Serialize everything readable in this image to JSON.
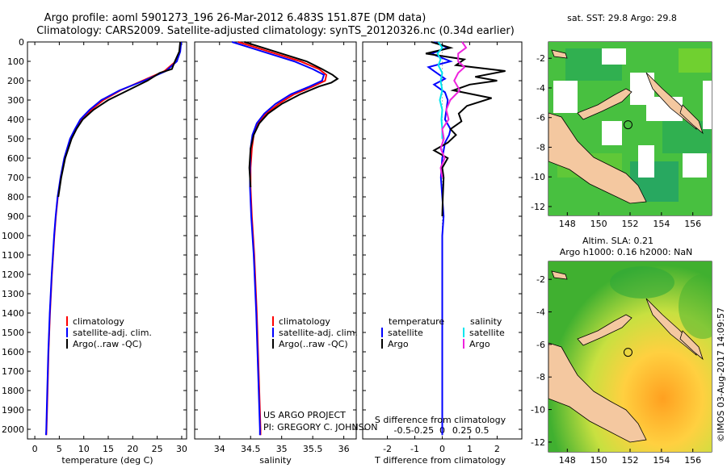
{
  "header": {
    "line1": "Argo profile: aoml 5901273_196 26-Mar-2012 6.483S 151.87E (DM data)",
    "line2": "Climatology: CARS2009. Satellite-adjusted climatology: synTS_20120326.nc (0.34d earlier)"
  },
  "credit": {
    "project": "US ARGO PROJECT",
    "pi": "PI: GREGORY C. JOHNSON"
  },
  "watermark": "©IMOS 03-Aug-2017 14:09:57",
  "colors": {
    "climatology": "#ff0000",
    "satellite": "#0000ff",
    "argo": "#000000",
    "sat_salinity": "#00e5ee",
    "argo_salinity": "#ee22dd",
    "land": "#f4c8a0"
  },
  "chart_data": [
    {
      "type": "line",
      "panel": "temperature",
      "xlabel": "temperature (deg C)",
      "ylabel": "",
      "xlim": [
        -1.5,
        31
      ],
      "ylim": [
        2050,
        0
      ],
      "xticks": [
        0,
        5,
        10,
        15,
        20,
        25,
        30
      ],
      "yticks": [
        0,
        100,
        200,
        300,
        400,
        500,
        600,
        700,
        800,
        900,
        1000,
        1100,
        1200,
        1300,
        1400,
        1500,
        1600,
        1700,
        1800,
        1900,
        2000
      ],
      "legend": [
        "climatology",
        "satellite-adj. clim.",
        "Argo(..raw -QC)"
      ],
      "series": [
        {
          "name": "climatology",
          "color": "#ff0000",
          "depth": [
            0,
            50,
            100,
            150,
            200,
            250,
            300,
            350,
            400,
            450,
            500,
            600,
            700,
            800,
            900,
            1000,
            1200,
            1400,
            1600,
            1800,
            2000,
            2030
          ],
          "values": [
            29.8,
            29.6,
            28.8,
            26.5,
            22.0,
            17.5,
            14.0,
            11.5,
            9.5,
            8.3,
            7.3,
            6.1,
            5.3,
            4.7,
            4.3,
            4.0,
            3.5,
            3.1,
            2.8,
            2.6,
            2.4,
            2.35
          ]
        },
        {
          "name": "satellite-adj. clim.",
          "color": "#0000ff",
          "depth": [
            0,
            50,
            100,
            150,
            200,
            250,
            300,
            350,
            400,
            450,
            500,
            600,
            700,
            800,
            900,
            1000,
            1200,
            1400,
            1600,
            1800,
            2000,
            2030
          ],
          "values": [
            29.9,
            29.7,
            29.0,
            26.8,
            22.3,
            17.3,
            13.6,
            11.2,
            9.3,
            8.2,
            7.2,
            6.0,
            5.25,
            4.65,
            4.25,
            3.95,
            3.45,
            3.05,
            2.75,
            2.55,
            2.35,
            2.3
          ]
        },
        {
          "name": "Argo(..raw -QC)",
          "color": "#000000",
          "depth": [
            0,
            50,
            100,
            140,
            160,
            200,
            250,
            300,
            350,
            400,
            450,
            500,
            600,
            700,
            800
          ],
          "values": [
            29.7,
            29.5,
            28.6,
            28.0,
            25.5,
            23.0,
            19.0,
            15.0,
            12.0,
            9.8,
            8.5,
            7.5,
            6.2,
            5.4,
            4.8
          ]
        }
      ]
    },
    {
      "type": "line",
      "panel": "salinity",
      "xlabel": "salinity",
      "xlim": [
        33.6,
        36.2
      ],
      "ylim": [
        2050,
        0
      ],
      "xticks": [
        34,
        34.5,
        35,
        35.5,
        36
      ],
      "legend": [
        "climatology",
        "satellite-adj. clim.",
        "Argo(..raw -QC)"
      ],
      "series": [
        {
          "name": "climatology",
          "color": "#ff0000",
          "depth": [
            0,
            30,
            60,
            100,
            140,
            170,
            200,
            230,
            270,
            320,
            370,
            420,
            480,
            550,
            650,
            750,
            900,
            1100,
            1400,
            1700,
            2000,
            2030
          ],
          "values": [
            34.3,
            34.6,
            34.9,
            35.3,
            35.6,
            35.72,
            35.7,
            35.5,
            35.2,
            34.95,
            34.75,
            34.62,
            34.55,
            34.52,
            34.5,
            34.5,
            34.52,
            34.56,
            34.6,
            34.63,
            34.66,
            34.66
          ]
        },
        {
          "name": "satellite-adj. clim.",
          "color": "#0000ff",
          "depth": [
            0,
            30,
            60,
            100,
            140,
            170,
            200,
            230,
            270,
            320,
            370,
            420,
            480,
            550,
            650,
            750,
            900,
            1100,
            1400,
            1700,
            2000,
            2030
          ],
          "values": [
            34.2,
            34.5,
            34.8,
            35.2,
            35.5,
            35.68,
            35.65,
            35.45,
            35.15,
            34.9,
            34.72,
            34.6,
            34.53,
            34.5,
            34.49,
            34.49,
            34.51,
            34.55,
            34.59,
            34.62,
            34.65,
            34.65
          ]
        },
        {
          "name": "Argo(..raw -QC)",
          "color": "#000000",
          "depth": [
            0,
            30,
            60,
            100,
            140,
            170,
            190,
            210,
            230,
            270,
            320,
            370,
            420,
            480,
            550,
            650,
            750
          ],
          "values": [
            34.4,
            34.7,
            35.0,
            35.4,
            35.65,
            35.82,
            35.9,
            35.8,
            35.6,
            35.3,
            35.0,
            34.78,
            34.64,
            34.55,
            34.5,
            34.48,
            34.5
          ]
        }
      ]
    },
    {
      "type": "line",
      "panel": "difference",
      "xlabel_top": "S difference from climatology",
      "xlabel_bottom": "T difference from climatology",
      "xticks_T": [
        -2,
        -1,
        0,
        1,
        2
      ],
      "xticks_S": [
        -0.5,
        -0.25,
        0,
        0.25,
        0.5
      ],
      "xticks_S_labels": [
        "-0.5",
        "-0.25",
        "0",
        "0.25",
        "0.5"
      ],
      "xlim_T": [
        -2.9,
        2.9
      ],
      "ylim": [
        2050,
        0
      ],
      "legend_temperature_title": "temperature",
      "legend_salinity_title": "salinity",
      "legend_temperature": [
        "satellite",
        "Argo"
      ],
      "legend_salinity": [
        "satellite",
        "Argo"
      ],
      "series": [
        {
          "name": "T satellite",
          "color": "#0000ff",
          "depth": [
            0,
            30,
            60,
            100,
            130,
            160,
            190,
            220,
            260,
            300,
            350,
            400,
            450,
            480,
            520,
            560,
            600,
            700,
            800,
            900,
            1000,
            1200,
            1400,
            1600,
            1800,
            2000,
            2030
          ],
          "values": [
            -0.3,
            0.2,
            -0.4,
            0.3,
            -0.5,
            -0.2,
            0.1,
            -0.3,
            0.1,
            0.2,
            0.15,
            0.1,
            0.3,
            0.25,
            0.1,
            0.05,
            0.0,
            -0.05,
            0.0,
            0.05,
            0.0,
            0.0,
            0.0,
            0.0,
            0.0,
            0.0,
            0.0
          ]
        },
        {
          "name": "T Argo",
          "color": "#000000",
          "depth": [
            0,
            30,
            60,
            90,
            120,
            150,
            180,
            200,
            220,
            250,
            290,
            330,
            370,
            410,
            450,
            480,
            520,
            560,
            600,
            650,
            700,
            800,
            900
          ],
          "values": [
            -0.4,
            0.3,
            -0.6,
            0.8,
            0.5,
            2.3,
            1.2,
            2.0,
            1.0,
            0.4,
            1.8,
            0.9,
            0.6,
            0.7,
            0.3,
            0.5,
            0.2,
            -0.3,
            0.2,
            0.0,
            0.05,
            0.02,
            0.0
          ]
        },
        {
          "name": "S satellite",
          "color": "#00e5ee",
          "depth": [
            0,
            30,
            60,
            90,
            120,
            160,
            200,
            250,
            300,
            350,
            400,
            450,
            500
          ],
          "values": [
            -0.05,
            0.0,
            -0.06,
            -0.02,
            -0.05,
            0.0,
            -0.02,
            0.0,
            -0.03,
            0.0,
            -0.01,
            0.0,
            0.0
          ]
        },
        {
          "name": "S Argo",
          "color": "#ee22dd",
          "depth": [
            0,
            30,
            60,
            100,
            130,
            160,
            200,
            250,
            300,
            350,
            400,
            450,
            500,
            550,
            600,
            650,
            700
          ],
          "values": [
            0.25,
            0.3,
            0.2,
            0.2,
            0.28,
            0.2,
            0.15,
            0.22,
            0.1,
            0.05,
            0.08,
            0.0,
            0.02,
            -0.02,
            0.03,
            -0.02,
            0.0
          ]
        }
      ]
    },
    {
      "type": "heatmap",
      "panel": "map-sst",
      "title": "sat. SST: 29.8  Argo: 29.8",
      "xticks": [
        148,
        150,
        152,
        154,
        156
      ],
      "yticks": [
        -2,
        -4,
        -6,
        -8,
        -10,
        -12
      ],
      "xlim": [
        146.8,
        157.2
      ],
      "ylim": [
        -12.6,
        -0.9
      ],
      "float_position": [
        151.87,
        -6.483
      ]
    },
    {
      "type": "heatmap",
      "panel": "map-sla",
      "title1": "Altim. SLA: 0.21",
      "title2": "Argo h1000: 0.16 h2000: NaN",
      "xticks": [
        148,
        150,
        152,
        154,
        156
      ],
      "yticks": [
        -2,
        -4,
        -6,
        -8,
        -10,
        -12
      ],
      "xlim": [
        146.8,
        157.2
      ],
      "ylim": [
        -12.6,
        -0.9
      ],
      "float_position": [
        151.87,
        -6.483
      ]
    }
  ]
}
